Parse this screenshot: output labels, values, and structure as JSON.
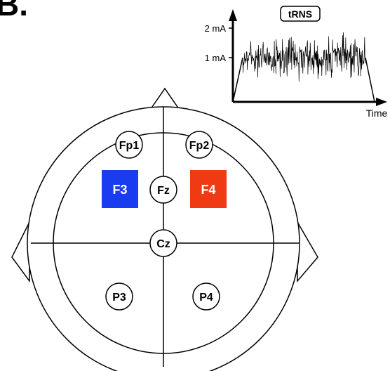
{
  "panel": {
    "label": "B."
  },
  "trns_plot": {
    "badge": "tRNS",
    "ytick_high": "2 mA",
    "ytick_low": "1 mA",
    "xlabel": "Time"
  },
  "montage": {
    "electrodes": {
      "fp1": "Fp1",
      "fp2": "Fp2",
      "fz": "Fz",
      "cz": "Cz",
      "p3": "P3",
      "p4": "P4",
      "f3": "F3",
      "f4": "F4"
    },
    "f3_color": "#1a3cf0",
    "f4_color": "#f03a14"
  }
}
